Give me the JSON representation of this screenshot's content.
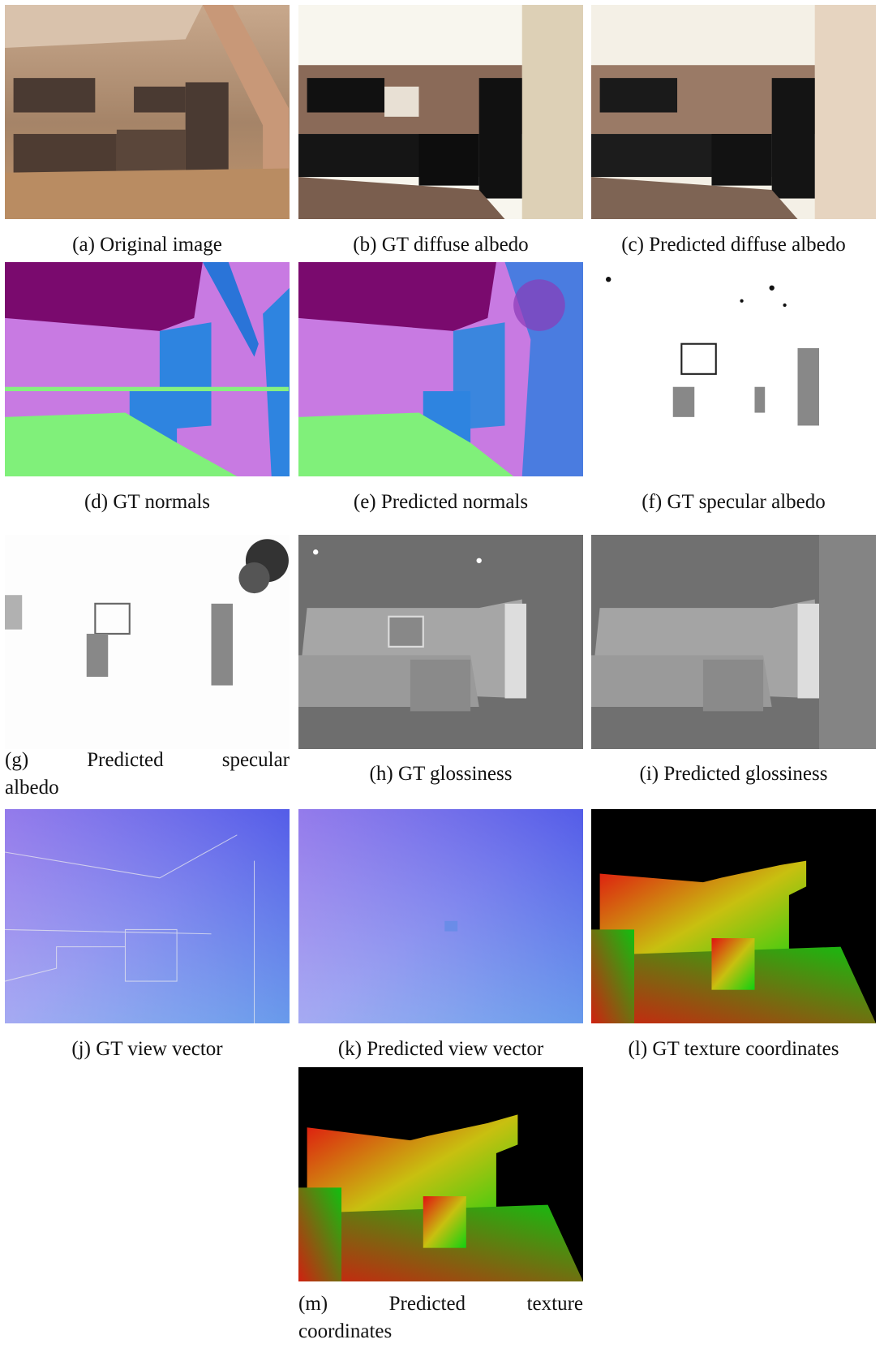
{
  "figure": {
    "panels": [
      {
        "label": "(a)",
        "caption": "Original image"
      },
      {
        "label": "(b)",
        "caption": "GT diffuse albedo"
      },
      {
        "label": "(c)",
        "caption": "Predicted diffuse albedo"
      },
      {
        "label": "(d)",
        "caption": "GT normals"
      },
      {
        "label": "(e)",
        "caption": "Predicted normals"
      },
      {
        "label": "(f)",
        "caption": "GT specular albedo"
      },
      {
        "label": "(g)",
        "caption": "Predicted specular albedo"
      },
      {
        "label": "(h)",
        "caption": "GT glossiness"
      },
      {
        "label": "(i)",
        "caption": "Predicted glossiness"
      },
      {
        "label": "(j)",
        "caption": "GT view vector"
      },
      {
        "label": "(k)",
        "caption": "Predicted view vector"
      },
      {
        "label": "(l)",
        "caption": "GT texture coordinates"
      },
      {
        "label": "(m)",
        "caption": "Predicted texture coordinates"
      }
    ]
  }
}
